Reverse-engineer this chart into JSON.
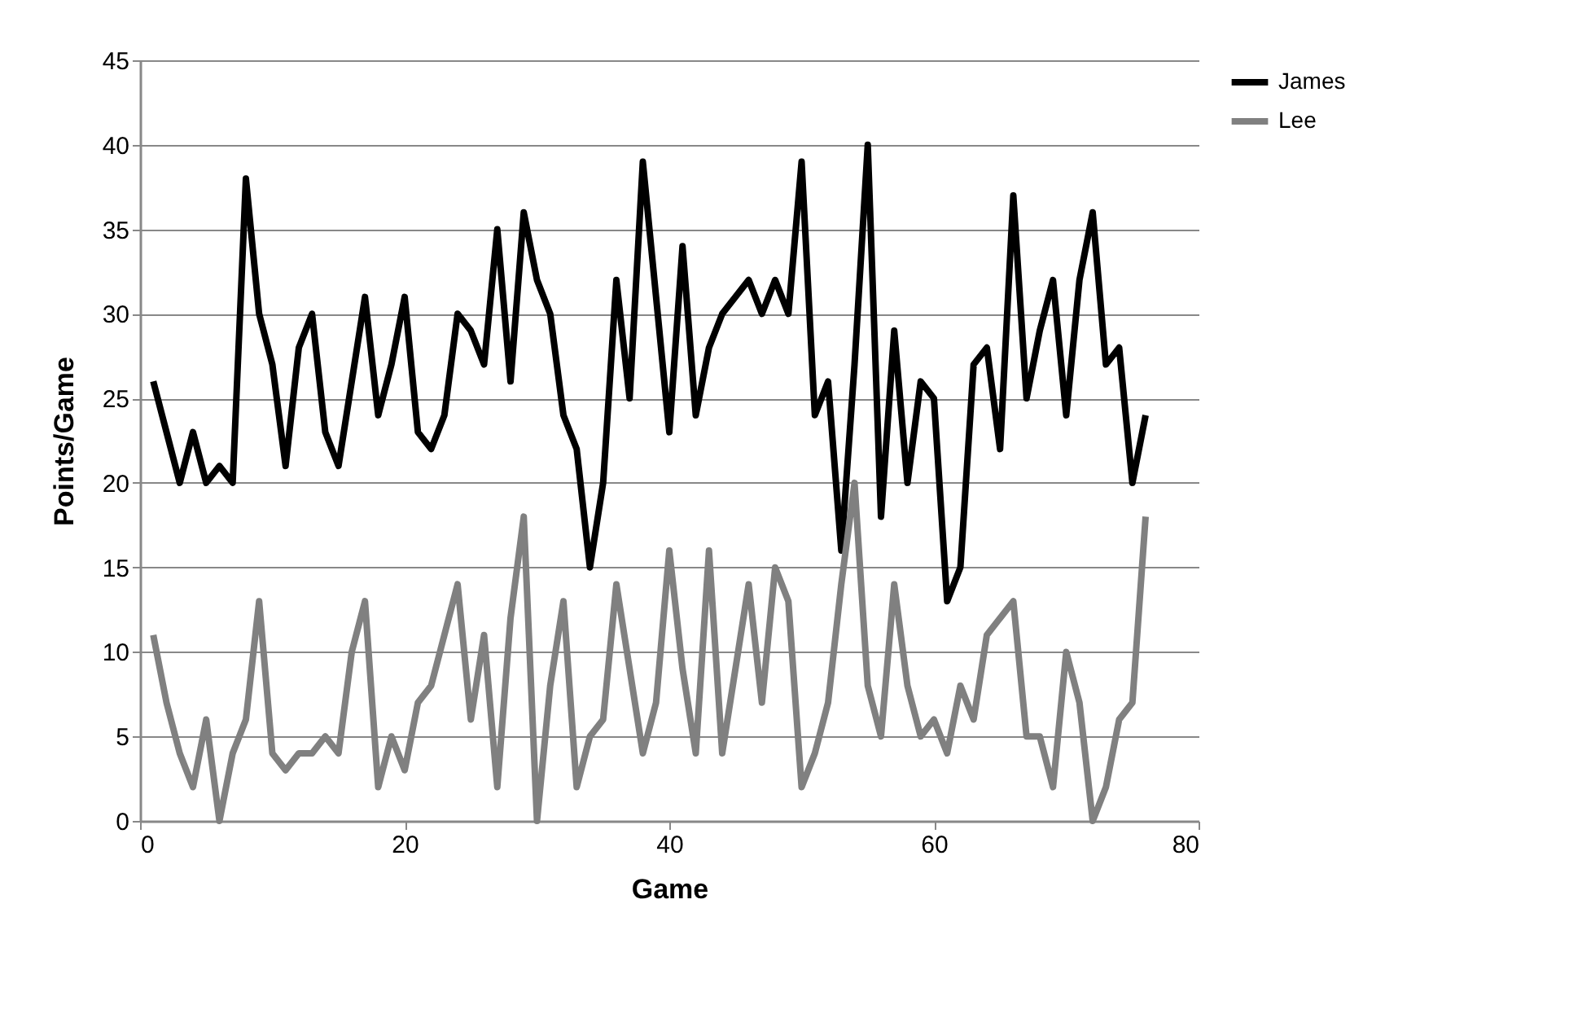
{
  "chart_data": {
    "type": "line",
    "xlabel": "Game",
    "ylabel": "Points/Game",
    "x": [
      1,
      2,
      3,
      4,
      5,
      6,
      7,
      8,
      9,
      10,
      11,
      12,
      13,
      14,
      15,
      16,
      17,
      18,
      19,
      20,
      21,
      22,
      23,
      24,
      25,
      26,
      27,
      28,
      29,
      30,
      31,
      32,
      33,
      34,
      35,
      36,
      37,
      38,
      39,
      40,
      41,
      42,
      43,
      44,
      45,
      46,
      47,
      48,
      49,
      50,
      51,
      52,
      53,
      54,
      55,
      56,
      57,
      58,
      59,
      60,
      61,
      62,
      63,
      64,
      65,
      66,
      67,
      68,
      69,
      70,
      71,
      72,
      73,
      74,
      75,
      76
    ],
    "series": [
      {
        "name": "James",
        "color": "#000000",
        "values": [
          26,
          23,
          20,
          23,
          20,
          21,
          20,
          38,
          30,
          27,
          21,
          28,
          30,
          23,
          21,
          26,
          31,
          24,
          27,
          31,
          23,
          22,
          24,
          30,
          29,
          27,
          35,
          26,
          36,
          32,
          30,
          24,
          22,
          15,
          20,
          32,
          25,
          39,
          31,
          23,
          34,
          24,
          28,
          30,
          31,
          32,
          30,
          32,
          30,
          39,
          24,
          26,
          16,
          27,
          40,
          18,
          29,
          20,
          26,
          25,
          13,
          15,
          27,
          28,
          22,
          37,
          25,
          29,
          32,
          24,
          32,
          36,
          27,
          28,
          20,
          24
        ]
      },
      {
        "name": "Lee",
        "color": "#808080",
        "values": [
          11,
          7,
          4,
          2,
          6,
          0,
          4,
          6,
          13,
          4,
          3,
          4,
          4,
          5,
          4,
          10,
          13,
          2,
          5,
          3,
          7,
          8,
          11,
          14,
          6,
          11,
          2,
          12,
          18,
          0,
          8,
          13,
          2,
          5,
          6,
          14,
          9,
          4,
          7,
          16,
          9,
          4,
          16,
          4,
          9,
          14,
          7,
          15,
          13,
          2,
          4,
          7,
          14,
          20,
          8,
          5,
          14,
          8,
          5,
          6,
          4,
          8,
          6,
          11,
          12,
          13,
          5,
          5,
          2,
          10,
          7,
          0,
          2,
          6,
          7,
          18
        ]
      }
    ],
    "xlim": [
      0,
      80
    ],
    "xticks": [
      0,
      20,
      40,
      60,
      80
    ],
    "ylim": [
      0,
      45
    ],
    "yticks": [
      0,
      5,
      10,
      15,
      20,
      25,
      30,
      35,
      40,
      45
    ],
    "grid": "y",
    "legend": "right",
    "marker": "none",
    "line_style": "solid"
  }
}
